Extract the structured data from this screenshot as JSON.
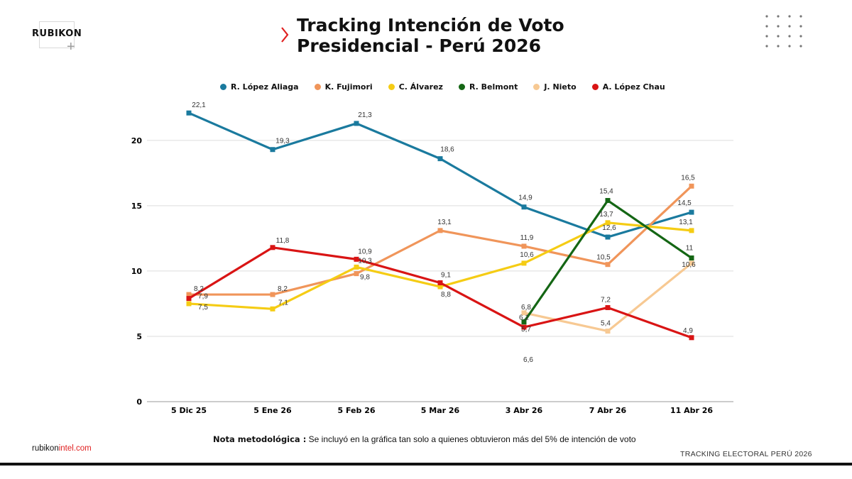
{
  "brand": {
    "logo_text": "RUBIKON",
    "website_prefix": "rubikon",
    "website_suffix": "intel.com",
    "footer_right": "TRACKING ELECTORAL PERÚ 2026"
  },
  "title_line1": "Tracking Intención de Voto",
  "title_line2": "Presidencial - Perú 2026",
  "note": {
    "label": "Nota metodológica :",
    "text": "Se incluyó en la gráfica tan solo a quienes obtuvieron más del 5% de intención de voto"
  },
  "colors": {
    "accent": "#e02020",
    "lopez_aliaga": "#1a7a9e",
    "fujimori": "#f0955a",
    "alvarez": "#f5cc14",
    "belmont": "#146614",
    "nieto": "#f7c993",
    "lopez_chau": "#d91414"
  },
  "chart_data": {
    "type": "line",
    "title": "Tracking Intención de Voto Presidencial - Perú 2026",
    "xlabel": "",
    "ylabel": "",
    "categories": [
      "5 Dic 25",
      "5 Ene 26",
      "5 Feb 26",
      "5 Mar 26",
      "3 Abr 26",
      "7 Abr 26",
      "11 Abr 26"
    ],
    "yticks": [
      "0",
      "5",
      "10",
      "15",
      "20"
    ],
    "ylim": [
      0,
      23
    ],
    "grid": true,
    "legend_position": "top",
    "series": [
      {
        "name": "R. López Aliaga",
        "color": "#1a7a9e",
        "values": [
          22.1,
          19.3,
          21.3,
          18.6,
          14.9,
          12.6,
          14.5
        ],
        "labels": [
          "22,1",
          "19,3",
          "21,3",
          "18,6",
          "14,9",
          "12,6",
          "14,5"
        ]
      },
      {
        "name": "K. Fujimori",
        "color": "#f0955a",
        "values": [
          8.2,
          8.2,
          9.8,
          13.1,
          11.9,
          10.5,
          16.5
        ],
        "labels": [
          "8,2",
          "8,2",
          "9,8",
          "13,1",
          "11,9",
          "10,5",
          "16,5"
        ]
      },
      {
        "name": "C. Álvarez",
        "color": "#f5cc14",
        "values": [
          7.5,
          7.1,
          10.3,
          8.8,
          10.6,
          13.7,
          13.1
        ],
        "labels": [
          "7,5",
          "7,1",
          "10,3",
          "8,8",
          "10,6",
          "13,7",
          "13,1"
        ]
      },
      {
        "name": "R. Belmont",
        "color": "#146614",
        "values": [
          null,
          null,
          null,
          null,
          6.1,
          15.4,
          11
        ],
        "labels": [
          null,
          null,
          null,
          null,
          "6,1",
          "15,4",
          "11"
        ]
      },
      {
        "name": "J. Nieto",
        "color": "#f7c993",
        "values": [
          null,
          null,
          null,
          null,
          6.8,
          5.4,
          10.6
        ],
        "labels": [
          null,
          null,
          null,
          null,
          "6,8",
          "5,4",
          "10,6"
        ]
      },
      {
        "name": "A. López Chau",
        "color": "#d91414",
        "values": [
          7.9,
          11.8,
          10.9,
          9.1,
          5.7,
          7.2,
          4.9
        ],
        "labels": [
          "7,9",
          "11,8",
          "10,9",
          "9,1",
          "5,7",
          "7,2",
          "4,9"
        ]
      }
    ],
    "extra_annotations": [
      {
        "text": "6,6",
        "category": "3 Abr 26"
      }
    ]
  }
}
